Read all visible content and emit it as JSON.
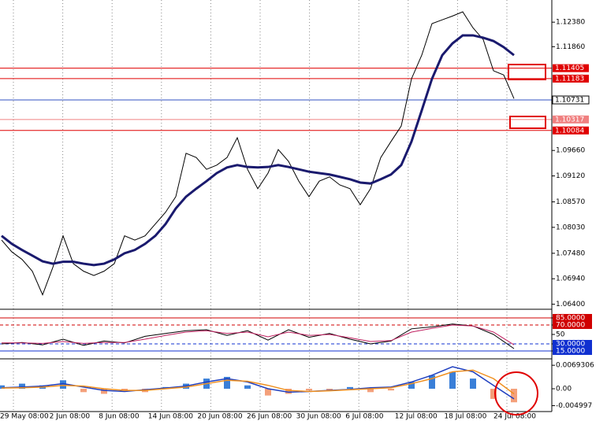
{
  "time_axis": [
    "29 May 08:00",
    "2 Jun 08:00",
    "8 Jun 08:00",
    "14 Jun 08:00",
    "20 Jun 08:00",
    "26 Jun 08:00",
    "30 Jun 08:00",
    "6 Jul 08:00",
    "12 Jul 08:00",
    "18 Jul 08:00",
    "24 Jul 08:00"
  ],
  "chart_data": [
    {
      "type": "line",
      "ylim": [
        1.0631,
        1.1285
      ],
      "yticks": [
        {
          "value": 1.1238,
          "label": "1.12380"
        },
        {
          "value": 1.1186,
          "label": "1.11860"
        },
        {
          "value": 1.0966,
          "label": "1.09660"
        },
        {
          "value": 1.0912,
          "label": "1.09120"
        },
        {
          "value": 1.0857,
          "label": "1.08570"
        },
        {
          "value": 1.0803,
          "label": "1.08030"
        },
        {
          "value": 1.0748,
          "label": "1.07480"
        },
        {
          "value": 1.0694,
          "label": "1.06940"
        },
        {
          "value": 1.064,
          "label": "1.06400"
        }
      ],
      "hlines": [
        {
          "value": 1.11405,
          "color": "#e00000"
        },
        {
          "value": 1.11183,
          "color": "#e00000"
        },
        {
          "value": 1.10731,
          "color": "#3050c0"
        },
        {
          "value": 1.10317,
          "color": "#f08080"
        },
        {
          "value": 1.10084,
          "color": "#e00000"
        }
      ],
      "series": [
        {
          "color": "#000000",
          "values": [
            1.0776,
            1.0751,
            1.0735,
            1.071,
            1.066,
            1.0718,
            1.0785,
            1.0726,
            1.071,
            1.0701,
            1.071,
            1.0726,
            1.0785,
            1.0776,
            1.0785,
            1.081,
            1.0835,
            1.0868,
            1.096,
            1.0951,
            1.0926,
            1.0935,
            1.0951,
            1.0993,
            1.0926,
            1.0885,
            1.0918,
            1.0968,
            1.0943,
            1.0901,
            1.0868,
            1.0901,
            1.091,
            1.0893,
            1.0885,
            1.0851,
            1.0885,
            1.0951,
            1.0985,
            1.1018,
            1.1118,
            1.1168,
            1.1235,
            1.1243,
            1.1251,
            1.126,
            1.1226,
            1.1201,
            1.1135,
            1.1126,
            1.1076
          ]
        },
        {
          "color": "#1a1a6e",
          "values": [
            1.0785,
            1.0768,
            1.0755,
            1.0743,
            1.0731,
            1.0726,
            1.073,
            1.073,
            1.0726,
            1.0723,
            1.0726,
            1.0735,
            1.0748,
            1.0755,
            1.0768,
            1.0785,
            1.081,
            1.0843,
            1.0868,
            1.0885,
            1.0901,
            1.0918,
            1.093,
            1.0935,
            1.0931,
            1.093,
            1.0931,
            1.0935,
            1.0931,
            1.0926,
            1.0921,
            1.0918,
            1.0915,
            1.091,
            1.0905,
            1.0898,
            1.0896,
            1.0905,
            1.0915,
            1.0935,
            1.0985,
            1.1051,
            1.1118,
            1.1168,
            1.1193,
            1.121,
            1.121,
            1.1205,
            1.1198,
            1.1185,
            1.1168
          ]
        }
      ]
    },
    {
      "type": "line",
      "ylim": [
        0,
        100
      ],
      "yticks": [
        {
          "value": 85,
          "label": "85.0000"
        },
        {
          "value": 70,
          "label": "70.0000"
        },
        50,
        {
          "value": 30,
          "label": "30.0000"
        },
        {
          "value": 15,
          "label": "15.0000"
        }
      ],
      "series": [
        {
          "color": "#000000",
          "values": [
            30,
            33,
            28,
            40,
            27,
            36,
            32,
            46,
            52,
            58,
            60,
            48,
            58,
            38,
            60,
            44,
            52,
            40,
            30,
            36,
            62,
            66,
            72,
            68,
            50,
            20
          ]
        },
        {
          "color": "#c02060",
          "values": [
            32,
            32,
            31,
            35,
            31,
            33,
            33,
            40,
            48,
            55,
            58,
            52,
            55,
            45,
            55,
            48,
            50,
            43,
            35,
            37,
            55,
            63,
            70,
            68,
            55,
            28
          ]
        }
      ]
    },
    {
      "type": "bar",
      "ylim": [
        -0.0065,
        0.0079
      ],
      "yticks": [
        0.0069306,
        {
          "value": 0,
          "label": "0.00"
        },
        -0.004997
      ],
      "colors": [
        "#3a7fd8",
        "#f4a07a"
      ],
      "values": [
        0.001,
        0.0015,
        0.001,
        0.0025,
        -0.001,
        -0.0015,
        -0.0005,
        -0.001,
        0.0005,
        0.0015,
        0.003,
        0.0035,
        0.001,
        -0.002,
        -0.0015,
        -0.0005,
        -0.0005,
        0.0005,
        -0.001,
        -0.0005,
        0.002,
        0.004,
        0.005,
        0.003,
        -0.003,
        -0.004
      ],
      "series": [
        {
          "color": "#1f3fbf",
          "values": [
            0.0003,
            0.0005,
            0.0008,
            0.0015,
            0.0005,
            -0.0005,
            -0.0008,
            -0.0003,
            0.0002,
            0.0008,
            0.002,
            0.003,
            0.002,
            0,
            -0.001,
            -0.0008,
            -0.0005,
            -0.0002,
            0.0003,
            0.0005,
            0.002,
            0.004,
            0.0065,
            0.005,
            0.001,
            -0.003
          ]
        },
        {
          "color": "#f09020",
          "values": [
            0.0002,
            0.0003,
            0.0005,
            0.001,
            0.0008,
            0,
            -0.0005,
            -0.0005,
            0,
            0.0005,
            0.0015,
            0.0025,
            0.0022,
            0.001,
            -0.0005,
            -0.0008,
            -0.0006,
            -0.0003,
            0,
            0.0003,
            0.0015,
            0.003,
            0.005,
            0.0055,
            0.003,
            -0.0015
          ]
        }
      ]
    }
  ]
}
